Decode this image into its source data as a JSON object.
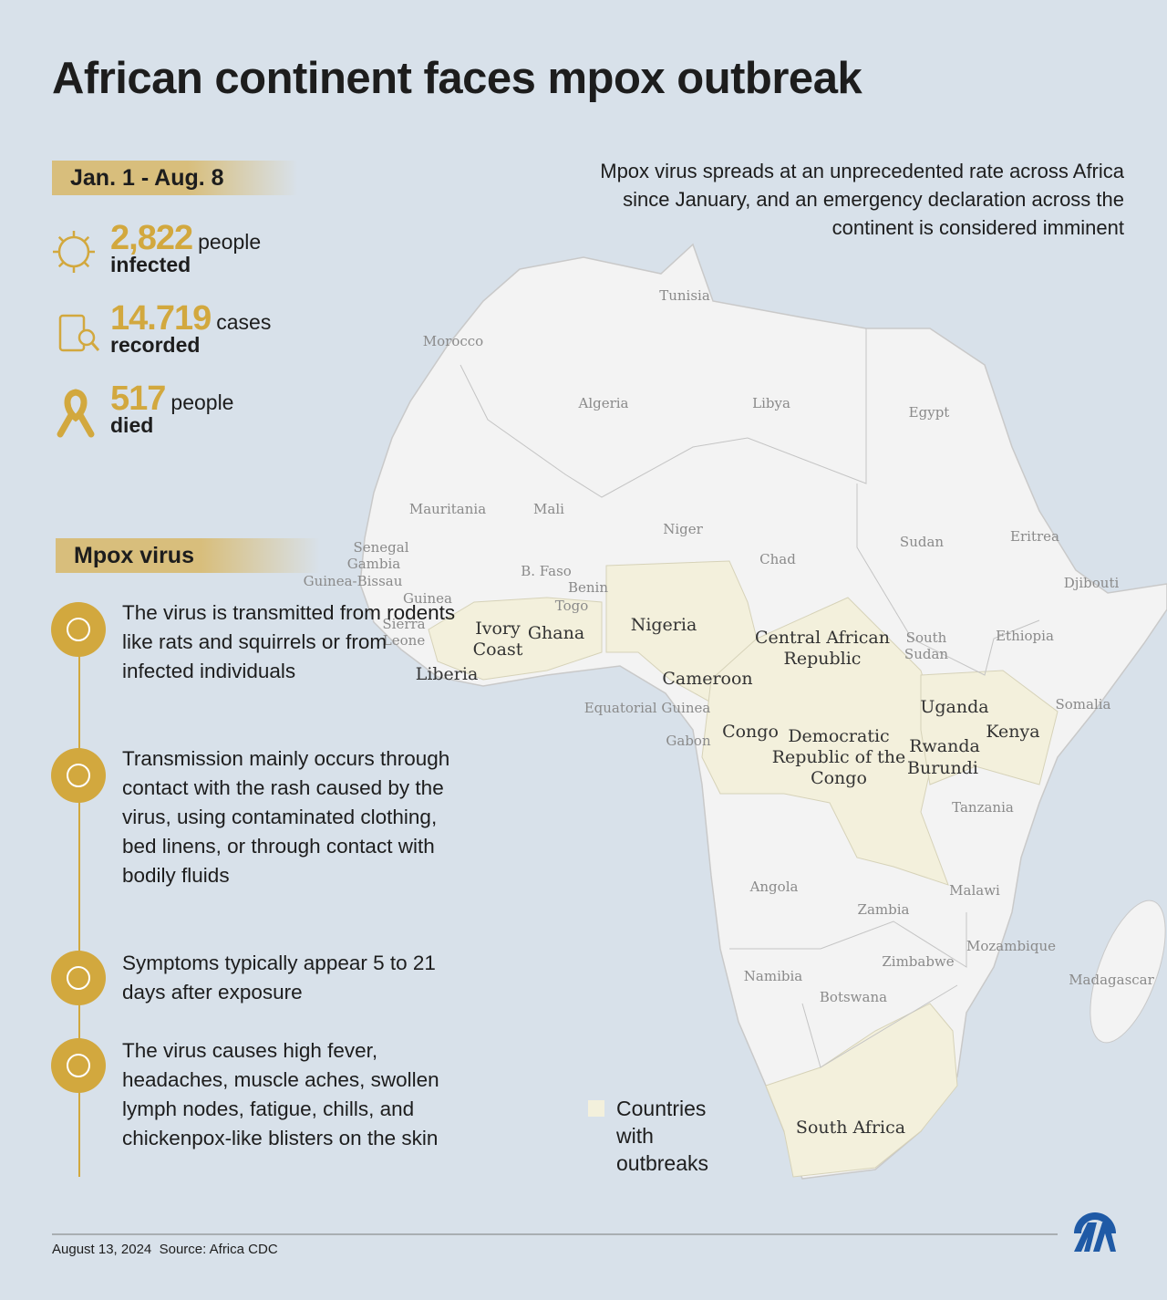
{
  "title": "African continent faces mpox outbreak",
  "period": "Jan. 1 -  Aug. 8",
  "stats": [
    {
      "value": "2,822",
      "unit": "people",
      "label": "infected"
    },
    {
      "value": "14.719",
      "unit": "cases",
      "label": "recorded"
    },
    {
      "value": "517",
      "unit": "people",
      "label": "died"
    }
  ],
  "intro": "Mpox virus spreads at an unprecedented rate across Africa since January, and an emergency declaration across the continent is considered imminent",
  "virus_heading": "Mpox virus",
  "facts": [
    "The virus is transmitted from rodents like rats and squirrels or from infected individuals",
    "Transmission mainly occurs through contact with the rash caused by the virus, using contaminated clothing, bed linens, or through contact with bodily fluids",
    "Symptoms typically appear 5 to 21 days after exposure",
    "The virus causes high fever, headaches, muscle aches, swollen lymph nodes, fatigue, chills, and chickenpox-like blisters on the skin"
  ],
  "map": {
    "countries": [
      {
        "lines": [
          "Tunisia"
        ],
        "outbreak": false
      },
      {
        "lines": [
          "Morocco"
        ],
        "outbreak": false
      },
      {
        "lines": [
          "Algeria"
        ],
        "outbreak": false
      },
      {
        "lines": [
          "Libya"
        ],
        "outbreak": false
      },
      {
        "lines": [
          "Egypt"
        ],
        "outbreak": false
      },
      {
        "lines": [
          "Mauritania"
        ],
        "outbreak": false
      },
      {
        "lines": [
          "Mali"
        ],
        "outbreak": false
      },
      {
        "lines": [
          "Niger"
        ],
        "outbreak": false
      },
      {
        "lines": [
          "Chad"
        ],
        "outbreak": false
      },
      {
        "lines": [
          "Sudan"
        ],
        "outbreak": false
      },
      {
        "lines": [
          "Eritrea"
        ],
        "outbreak": false
      },
      {
        "lines": [
          "Djibouti"
        ],
        "outbreak": false
      },
      {
        "lines": [
          "Senegal"
        ],
        "outbreak": false
      },
      {
        "lines": [
          "Gambia"
        ],
        "outbreak": false
      },
      {
        "lines": [
          "Guinea-Bissau"
        ],
        "outbreak": false
      },
      {
        "lines": [
          "Guinea"
        ],
        "outbreak": false
      },
      {
        "lines": [
          "B. Faso"
        ],
        "outbreak": false
      },
      {
        "lines": [
          "Benin"
        ],
        "outbreak": false
      },
      {
        "lines": [
          "Togo"
        ],
        "outbreak": false
      },
      {
        "lines": [
          "Sierra",
          "Leone"
        ],
        "outbreak": false
      },
      {
        "lines": [
          "Liberia"
        ],
        "outbreak": true
      },
      {
        "lines": [
          "Ivory",
          "Coast"
        ],
        "outbreak": true
      },
      {
        "lines": [
          "Ghana"
        ],
        "outbreak": true
      },
      {
        "lines": [
          "Nigeria"
        ],
        "outbreak": true
      },
      {
        "lines": [
          "Cameroon"
        ],
        "outbreak": true
      },
      {
        "lines": [
          "Central African",
          "Republic"
        ],
        "outbreak": true
      },
      {
        "lines": [
          "South",
          "Sudan"
        ],
        "outbreak": false
      },
      {
        "lines": [
          "Ethiopia"
        ],
        "outbreak": false
      },
      {
        "lines": [
          "Somalia"
        ],
        "outbreak": false
      },
      {
        "lines": [
          "Equatorial Guinea"
        ],
        "outbreak": false
      },
      {
        "lines": [
          "Gabon"
        ],
        "outbreak": false
      },
      {
        "lines": [
          "Congo"
        ],
        "outbreak": true
      },
      {
        "lines": [
          "Democratic",
          "Republic of the",
          "Congo"
        ],
        "outbreak": true
      },
      {
        "lines": [
          "Uganda"
        ],
        "outbreak": true
      },
      {
        "lines": [
          "Kenya"
        ],
        "outbreak": true
      },
      {
        "lines": [
          "Rwanda"
        ],
        "outbreak": true
      },
      {
        "lines": [
          "Burundi"
        ],
        "outbreak": true
      },
      {
        "lines": [
          "Tanzania"
        ],
        "outbreak": false
      },
      {
        "lines": [
          "Angola"
        ],
        "outbreak": false
      },
      {
        "lines": [
          "Zambia"
        ],
        "outbreak": false
      },
      {
        "lines": [
          "Malawi"
        ],
        "outbreak": false
      },
      {
        "lines": [
          "Mozambique"
        ],
        "outbreak": false
      },
      {
        "lines": [
          "Madagascar"
        ],
        "outbreak": false
      },
      {
        "lines": [
          "Zimbabwe"
        ],
        "outbreak": false
      },
      {
        "lines": [
          "Namibia"
        ],
        "outbreak": false
      },
      {
        "lines": [
          "Botswana"
        ],
        "outbreak": false
      },
      {
        "lines": [
          "South Africa"
        ],
        "outbreak": true
      }
    ],
    "legend": [
      "Countries",
      "with",
      "outbreaks"
    ]
  },
  "footer": {
    "date": "August 13, 2024",
    "source": "Source: Africa CDC"
  }
}
